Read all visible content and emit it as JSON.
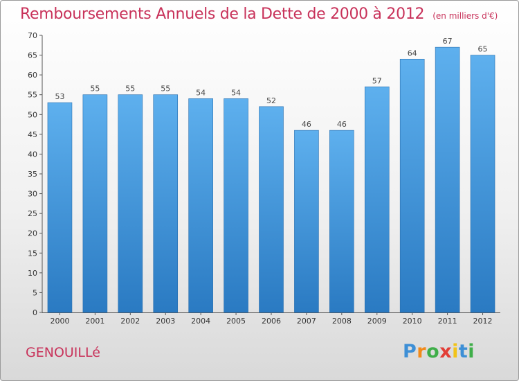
{
  "chart_data": {
    "type": "bar",
    "title": "Remboursements Annuels de la Dette de 2000 à 2012",
    "subtitle": "(en milliers d'€)",
    "categories": [
      "2000",
      "2001",
      "2002",
      "2003",
      "2004",
      "2005",
      "2006",
      "2007",
      "2008",
      "2009",
      "2010",
      "2011",
      "2012"
    ],
    "values": [
      53,
      55,
      55,
      55,
      54,
      54,
      52,
      46,
      46,
      57,
      64,
      67,
      65
    ],
    "ylim": [
      0,
      70
    ],
    "yticks": [
      0,
      5,
      10,
      15,
      20,
      25,
      30,
      35,
      40,
      45,
      50,
      55,
      60,
      65,
      70
    ],
    "grid": false,
    "data_labels": true,
    "bar_color": "#3d8fd6"
  },
  "commune": "GENOUILLé",
  "brand": {
    "letters": [
      "P",
      "r",
      "o",
      "x",
      "i",
      "t",
      "i"
    ],
    "colors": [
      "#3d8fd6",
      "#f28a1a",
      "#3fae49",
      "#e23d36",
      "#f2c318",
      "#3d8fd6",
      "#3fae49"
    ]
  }
}
